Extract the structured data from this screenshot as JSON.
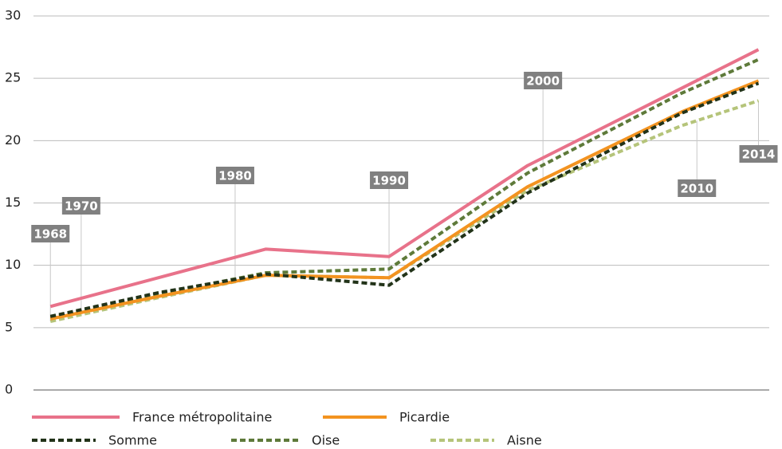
{
  "chart_data": {
    "type": "line",
    "x": [
      1968,
      1975,
      1982,
      1990,
      1999,
      2009,
      2014
    ],
    "series": [
      {
        "name": "France métropolitaine",
        "color": "#e8728a",
        "dash": false,
        "values": [
          6.7,
          9.0,
          11.3,
          10.7,
          18.0,
          24.2,
          27.3
        ]
      },
      {
        "name": "Picardie",
        "color": "#f39320",
        "dash": false,
        "values": [
          5.7,
          7.5,
          9.2,
          9.0,
          16.3,
          22.3,
          24.8
        ]
      },
      {
        "name": "Somme",
        "color": "#223319",
        "dash": true,
        "values": [
          5.9,
          7.8,
          9.3,
          8.4,
          15.8,
          22.2,
          24.6
        ]
      },
      {
        "name": "Oise",
        "color": "#5e7a3a",
        "dash": true,
        "values": [
          5.8,
          7.7,
          9.4,
          9.7,
          17.4,
          23.8,
          26.5
        ]
      },
      {
        "name": "Aisne",
        "color": "#b5c47a",
        "dash": true,
        "values": [
          5.5,
          7.4,
          9.2,
          9.0,
          16.0,
          21.2,
          23.2
        ]
      }
    ],
    "annotations": [
      {
        "text": "1968",
        "x": 1968
      },
      {
        "text": "1970",
        "x": 1970
      },
      {
        "text": "1980",
        "x": 1980
      },
      {
        "text": "1990",
        "x": 1990
      },
      {
        "text": "2000",
        "x": 2000
      },
      {
        "text": "2010",
        "x": 2010
      },
      {
        "text": "2014",
        "x": 2014
      }
    ],
    "xlim": [
      1966.9,
      2014.7
    ],
    "ylim": [
      0,
      30
    ],
    "yticks": [
      0,
      5,
      10,
      15,
      20,
      25,
      30
    ],
    "grid": true
  }
}
